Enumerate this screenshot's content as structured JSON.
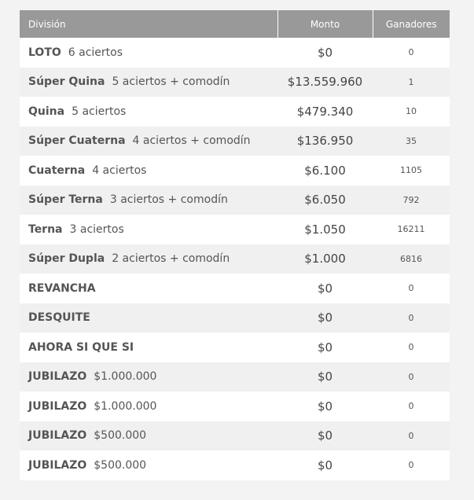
{
  "table": {
    "headers": {
      "division": "División",
      "monto": "Monto",
      "ganadores": "Ganadores"
    },
    "rows": [
      {
        "name": "LOTO",
        "detail": "6 aciertos",
        "monto": "$0",
        "ganadores": "0"
      },
      {
        "name": "Súper Quina",
        "detail": "5 aciertos + comodín",
        "monto": "$13.559.960",
        "ganadores": "1"
      },
      {
        "name": "Quina",
        "detail": "5 aciertos",
        "monto": "$479.340",
        "ganadores": "10"
      },
      {
        "name": "Súper Cuaterna",
        "detail": "4 aciertos + comodín",
        "monto": "$136.950",
        "ganadores": "35"
      },
      {
        "name": "Cuaterna",
        "detail": "4 aciertos",
        "monto": "$6.100",
        "ganadores": "1105"
      },
      {
        "name": "Súper Terna",
        "detail": "3 aciertos + comodín",
        "monto": "$6.050",
        "ganadores": "792"
      },
      {
        "name": "Terna",
        "detail": "3 aciertos",
        "monto": "$1.050",
        "ganadores": "16211"
      },
      {
        "name": "Súper Dupla",
        "detail": "2 aciertos + comodín",
        "monto": "$1.000",
        "ganadores": "6816"
      },
      {
        "name": "REVANCHA",
        "detail": "",
        "monto": "$0",
        "ganadores": "0"
      },
      {
        "name": "DESQUITE",
        "detail": "",
        "monto": "$0",
        "ganadores": "0"
      },
      {
        "name": "AHORA SI QUE SI",
        "detail": "",
        "monto": "$0",
        "ganadores": "0"
      },
      {
        "name": "JUBILAZO",
        "detail": "$1.000.000",
        "monto": "$0",
        "ganadores": "0"
      },
      {
        "name": "JUBILAZO",
        "detail": "$1.000.000",
        "monto": "$0",
        "ganadores": "0"
      },
      {
        "name": "JUBILAZO",
        "detail": "$500.000",
        "monto": "$0",
        "ganadores": "0"
      },
      {
        "name": "JUBILAZO",
        "detail": "$500.000",
        "monto": "$0",
        "ganadores": "0"
      }
    ]
  },
  "colors": {
    "header_bg": "#999999",
    "header_text": "#ffffff",
    "row_odd": "#ffffff",
    "row_even": "#f0f0f0",
    "page_bg": "#f3f3f3",
    "text": "#555555"
  }
}
